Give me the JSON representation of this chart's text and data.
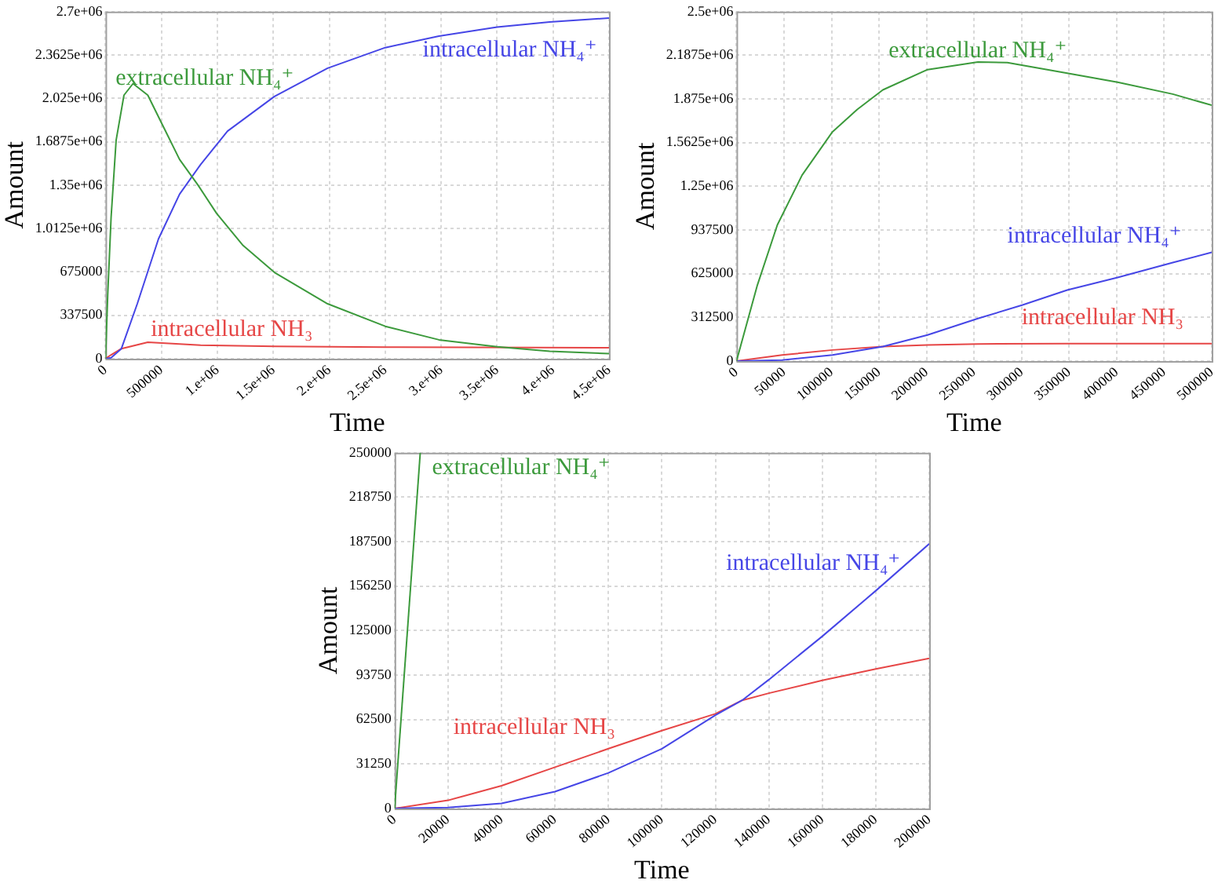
{
  "chart_data": [
    {
      "type": "line",
      "xlabel": "Time",
      "ylabel": "Amount",
      "grid": true,
      "xlim": [
        0,
        4500000
      ],
      "xticks": [
        0,
        500000,
        {
          "value": 1000000,
          "label": "1.e+06"
        },
        {
          "value": 1500000,
          "label": "1.5e+06"
        },
        {
          "value": 2000000,
          "label": "2.e+06"
        },
        {
          "value": 2500000,
          "label": "2.5e+06"
        },
        {
          "value": 3000000,
          "label": "3.e+06"
        },
        {
          "value": 3500000,
          "label": "3.5e+06"
        },
        {
          "value": 4000000,
          "label": "4.e+06"
        },
        {
          "value": 4500000,
          "label": "4.5e+06"
        }
      ],
      "ylim": [
        0,
        2700000
      ],
      "yticks": [
        0,
        337500,
        675000,
        {
          "value": 1012500,
          "label": "1.0125e+06"
        },
        {
          "value": 1350000,
          "label": "1.35e+06"
        },
        {
          "value": 1687500,
          "label": "1.6875e+06"
        },
        {
          "value": 2025000,
          "label": "2.025e+06"
        },
        {
          "value": 2362500,
          "label": "2.3625e+06"
        },
        {
          "value": 2700000,
          "label": "2.7e+06"
        }
      ],
      "series": [
        {
          "name": "extracellular NH₄⁺",
          "color": "#3c9a3c",
          "x": [
            0,
            20000,
            50000,
            95000,
            165000,
            246000,
            378000,
            520000,
            662000,
            827000,
            993000,
            1230000,
            1510000,
            1985000,
            2500000,
            2980000,
            3500000,
            3970000,
            4500000
          ],
          "values": [
            0,
            500000,
            1100000,
            1700000,
            2050000,
            2140000,
            2050000,
            1800000,
            1550000,
            1350000,
            1130000,
            880000,
            671000,
            427000,
            252000,
            147000,
            93000,
            58000,
            39000
          ]
        },
        {
          "name": "intracellular NH₄⁺",
          "color": "#4646e6",
          "x": [
            0,
            50000,
            142000,
            284000,
            473000,
            662000,
            850000,
            1090000,
            1510000,
            1985000,
            2500000,
            2980000,
            3500000,
            3970000,
            4500000
          ],
          "values": [
            0,
            7000,
            78000,
            427000,
            931000,
            1280000,
            1510000,
            1770000,
            2040000,
            2260000,
            2420000,
            2510000,
            2580000,
            2620000,
            2650000
          ]
        },
        {
          "name": "intracellular NH₃",
          "color": "#e64646",
          "x": [
            0,
            50000,
            142000,
            378000,
            850000,
            1510000,
            2500000,
            4500000
          ],
          "values": [
            0,
            30000,
            78000,
            128000,
            105000,
            96000,
            90000,
            85000
          ]
        }
      ]
    },
    {
      "type": "line",
      "xlabel": "Time",
      "ylabel": "Amount",
      "grid": true,
      "xlim": [
        0,
        500000
      ],
      "xticks": [
        0,
        50000,
        100000,
        150000,
        200000,
        250000,
        300000,
        350000,
        400000,
        450000,
        500000
      ],
      "ylim": [
        0,
        2500000
      ],
      "yticks": [
        0,
        312500,
        625000,
        937500,
        {
          "value": 1250000,
          "label": "1.25e+06"
        },
        {
          "value": 1562500,
          "label": "1.5625e+06"
        },
        {
          "value": 1875000,
          "label": "1.875e+06"
        },
        {
          "value": 2187500,
          "label": "2.1875e+06"
        },
        {
          "value": 2500000,
          "label": "2.5e+06"
        }
      ],
      "series": [
        {
          "name": "extracellular NH₄⁺",
          "color": "#3c9a3c",
          "x": [
            0,
            22000,
            43000,
            69000,
            101000,
            127000,
            154000,
            201000,
            254000,
            285000,
            348000,
            401000,
            459000,
            500000
          ],
          "values": [
            0,
            544000,
            974000,
            1330000,
            1640000,
            1800000,
            1940000,
            2085000,
            2140000,
            2135000,
            2060000,
            1995000,
            1910000,
            1830000
          ]
        },
        {
          "name": "intracellular NH₄⁺",
          "color": "#4646e6",
          "x": [
            0,
            48000,
            101000,
            154000,
            201000,
            254000,
            301000,
            348000,
            401000,
            459000,
            500000
          ],
          "values": [
            0,
            7000,
            43000,
            104000,
            186000,
            304000,
            401000,
            508000,
            598000,
            705000,
            777000
          ]
        },
        {
          "name": "intracellular NH₃",
          "color": "#e64646",
          "x": [
            0,
            48000,
            101000,
            154000,
            201000,
            254000,
            348000,
            500000
          ],
          "values": [
            0,
            43000,
            79000,
            104000,
            115000,
            122000,
            125000,
            125000
          ]
        }
      ]
    },
    {
      "type": "line",
      "xlabel": "Time",
      "ylabel": "Amount",
      "grid": true,
      "xlim": [
        0,
        200000
      ],
      "xticks": [
        0,
        20000,
        40000,
        60000,
        80000,
        100000,
        120000,
        140000,
        160000,
        180000,
        200000
      ],
      "ylim": [
        0,
        250000
      ],
      "yticks": [
        0,
        31250,
        62500,
        93750,
        125000,
        156250,
        187500,
        218750,
        250000
      ],
      "series": [
        {
          "name": "extracellular NH₄⁺",
          "color": "#3c9a3c",
          "x": [
            0,
            9600
          ],
          "values": [
            0,
            250000
          ]
        },
        {
          "name": "intracellular NH₄⁺",
          "color": "#4646e6",
          "x": [
            0,
            20000,
            40000,
            60000,
            80000,
            100000,
            120000,
            130000,
            140000,
            160000,
            180000,
            200000
          ],
          "values": [
            0,
            700,
            3600,
            11800,
            25000,
            42000,
            65500,
            76000,
            90500,
            121000,
            153000,
            186000
          ]
        },
        {
          "name": "intracellular NH₃",
          "color": "#e64646",
          "x": [
            0,
            20000,
            40000,
            60000,
            80000,
            100000,
            120000,
            130000,
            140000,
            160000,
            180000,
            200000
          ],
          "values": [
            0,
            5700,
            16000,
            29000,
            42000,
            54700,
            66500,
            76000,
            81000,
            90000,
            98000,
            105500
          ]
        }
      ]
    }
  ]
}
